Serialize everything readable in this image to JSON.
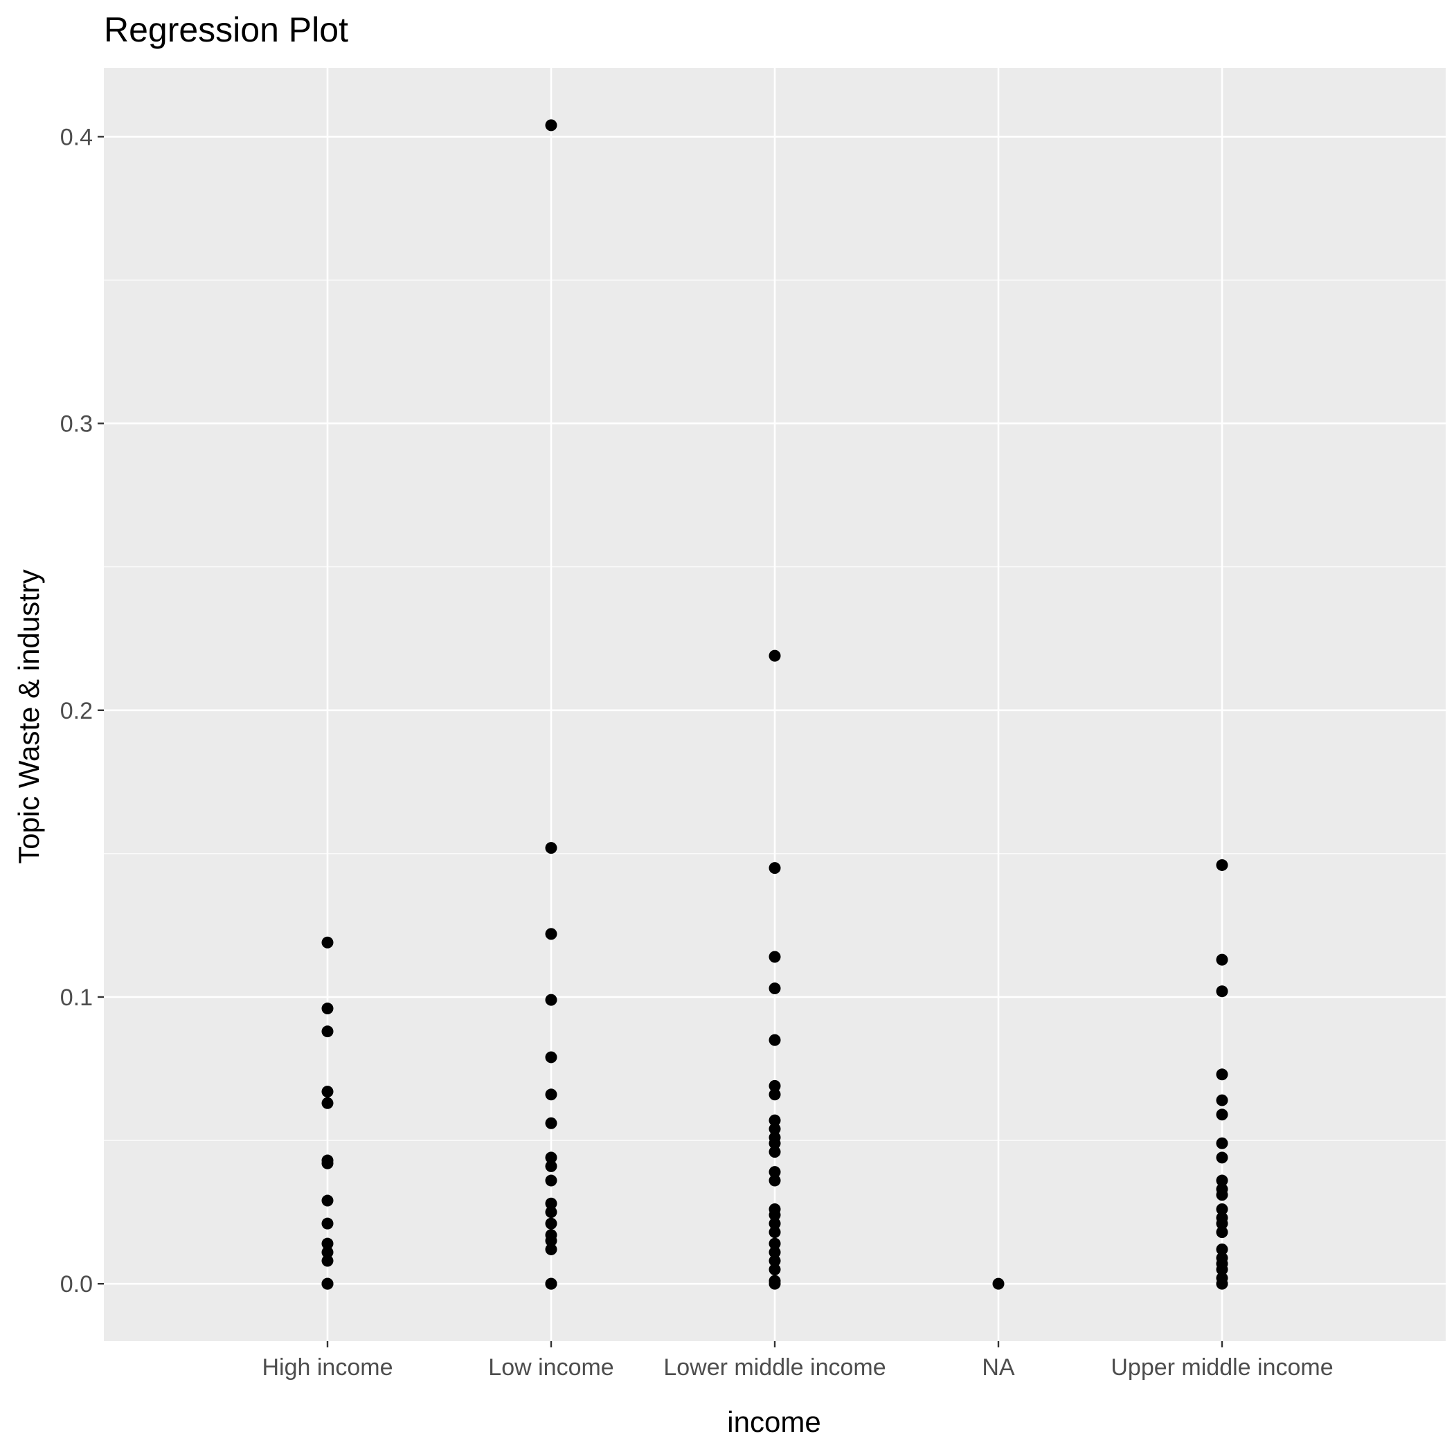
{
  "chart_data": {
    "type": "scatter",
    "title": "Regression Plot",
    "xlabel": "income",
    "ylabel": "Topic Waste & industry",
    "categories": [
      "High income",
      "Low income",
      "Lower middle income",
      "NA",
      "Upper middle income"
    ],
    "ylim": [
      -0.02,
      0.424
    ],
    "yticks": [
      "0.0",
      "0.1",
      "0.2",
      "0.3",
      "0.4"
    ],
    "ytick_values": [
      0.0,
      0.1,
      0.2,
      0.3,
      0.4
    ],
    "grid": true,
    "background": "#ebebeb",
    "grid_color": "#ffffff",
    "point_color": "#000000",
    "points": [
      {
        "category": "High income",
        "values": [
          0.119,
          0.096,
          0.088,
          0.067,
          0.063,
          0.043,
          0.042,
          0.029,
          0.021,
          0.014,
          0.011,
          0.008,
          0.0,
          0.0
        ]
      },
      {
        "category": "Low income",
        "values": [
          0.404,
          0.152,
          0.122,
          0.099,
          0.079,
          0.066,
          0.056,
          0.044,
          0.041,
          0.036,
          0.028,
          0.025,
          0.021,
          0.017,
          0.015,
          0.012,
          0.0,
          0.0
        ]
      },
      {
        "category": "Lower middle income",
        "values": [
          0.219,
          0.145,
          0.114,
          0.103,
          0.085,
          0.069,
          0.066,
          0.057,
          0.054,
          0.051,
          0.049,
          0.046,
          0.039,
          0.036,
          0.026,
          0.024,
          0.021,
          0.018,
          0.014,
          0.011,
          0.008,
          0.005,
          0.001,
          0.0
        ]
      },
      {
        "category": "NA",
        "values": [
          0.0
        ]
      },
      {
        "category": "Upper middle income",
        "values": [
          0.146,
          0.113,
          0.102,
          0.073,
          0.064,
          0.059,
          0.049,
          0.044,
          0.036,
          0.033,
          0.031,
          0.026,
          0.023,
          0.021,
          0.018,
          0.012,
          0.009,
          0.007,
          0.005,
          0.002,
          0.0
        ]
      }
    ]
  }
}
